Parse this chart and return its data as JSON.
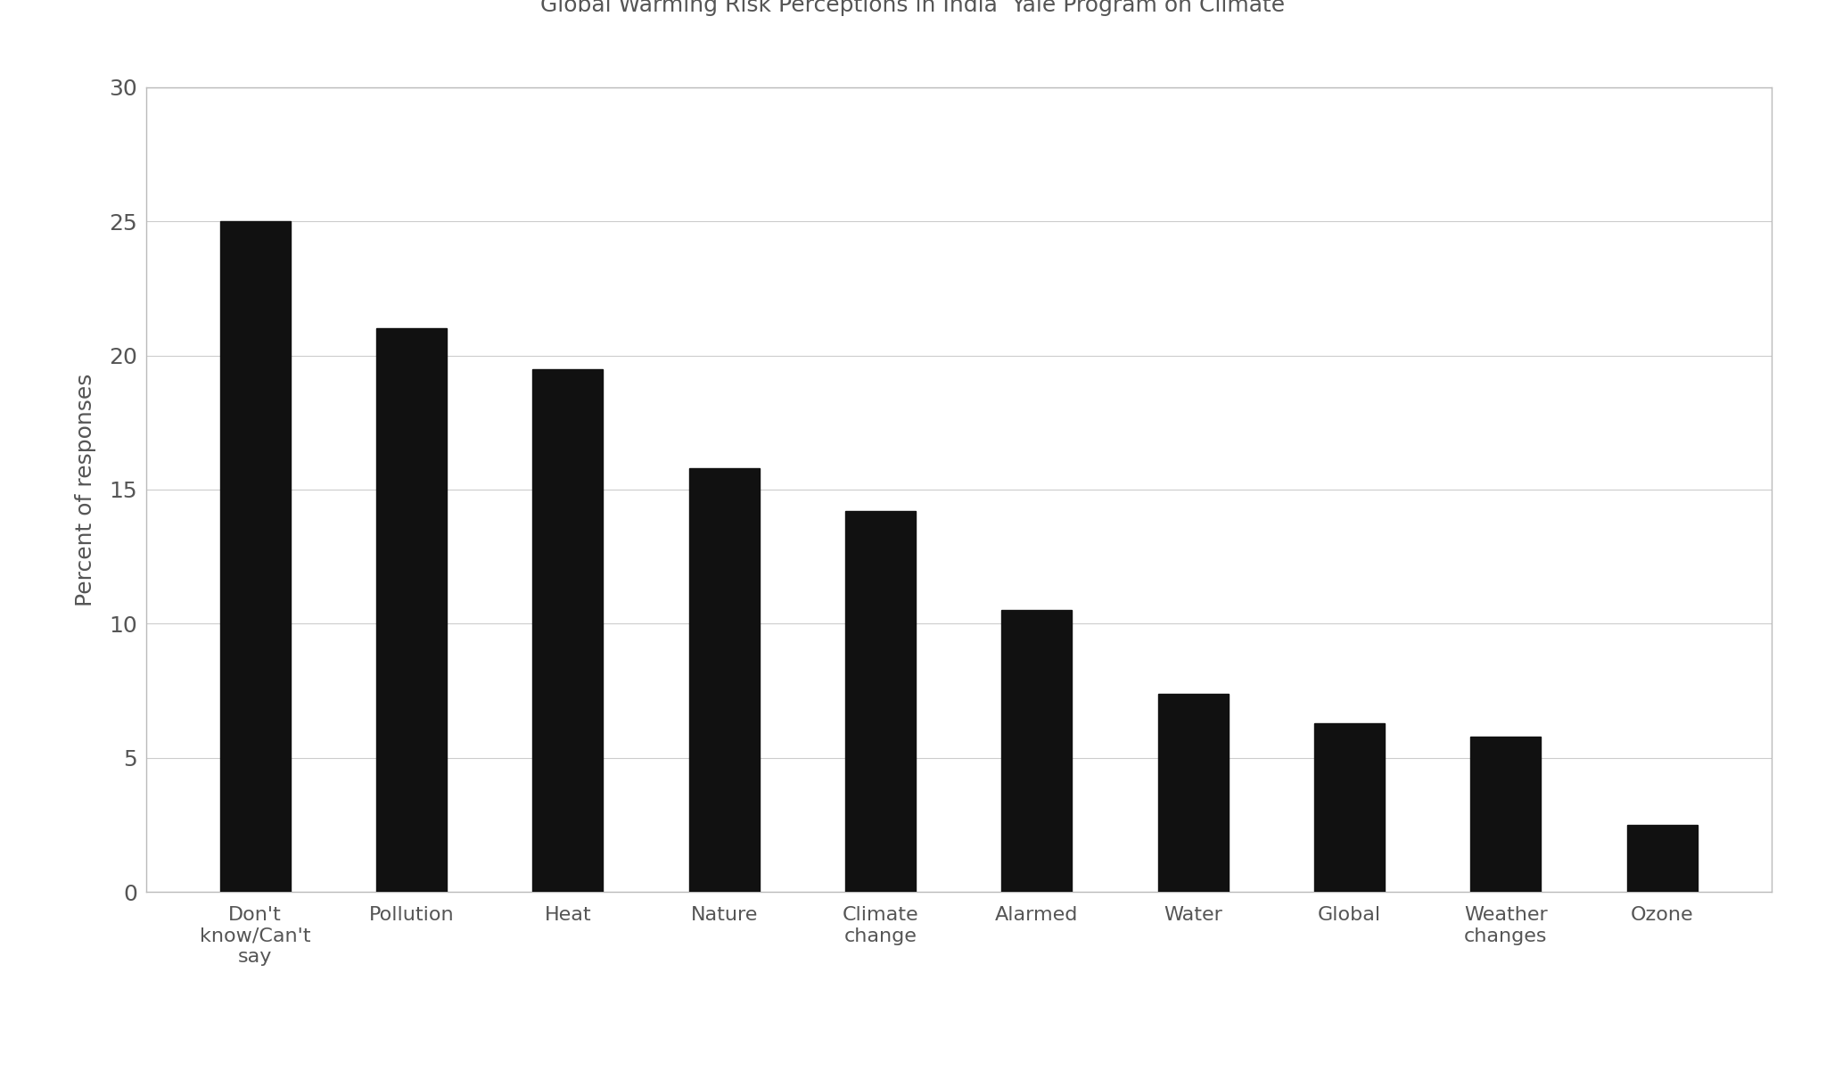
{
  "categories": [
    "Don't\nknow/Can't\nsay",
    "Pollution",
    "Heat",
    "Nature",
    "Climate\nchange",
    "Alarmed",
    "Water",
    "Global",
    "Weather\nchanges",
    "Ozone"
  ],
  "values": [
    25.0,
    21.0,
    19.5,
    15.8,
    14.2,
    10.5,
    7.4,
    6.3,
    5.8,
    2.5
  ],
  "bar_color": "#111111",
  "background_color": "#ffffff",
  "plot_background": "#ffffff",
  "title": "Global Warming Risk Perceptions in India  Yale Program on Climate",
  "ylabel": "Percent of responses",
  "ylim": [
    0,
    30
  ],
  "yticks": [
    0,
    5,
    10,
    15,
    20,
    25,
    30
  ],
  "title_fontsize": 18,
  "axis_fontsize": 18,
  "tick_fontsize": 18,
  "bar_width": 0.45,
  "grid_color": "#cccccc",
  "spine_color": "#bbbbbb"
}
